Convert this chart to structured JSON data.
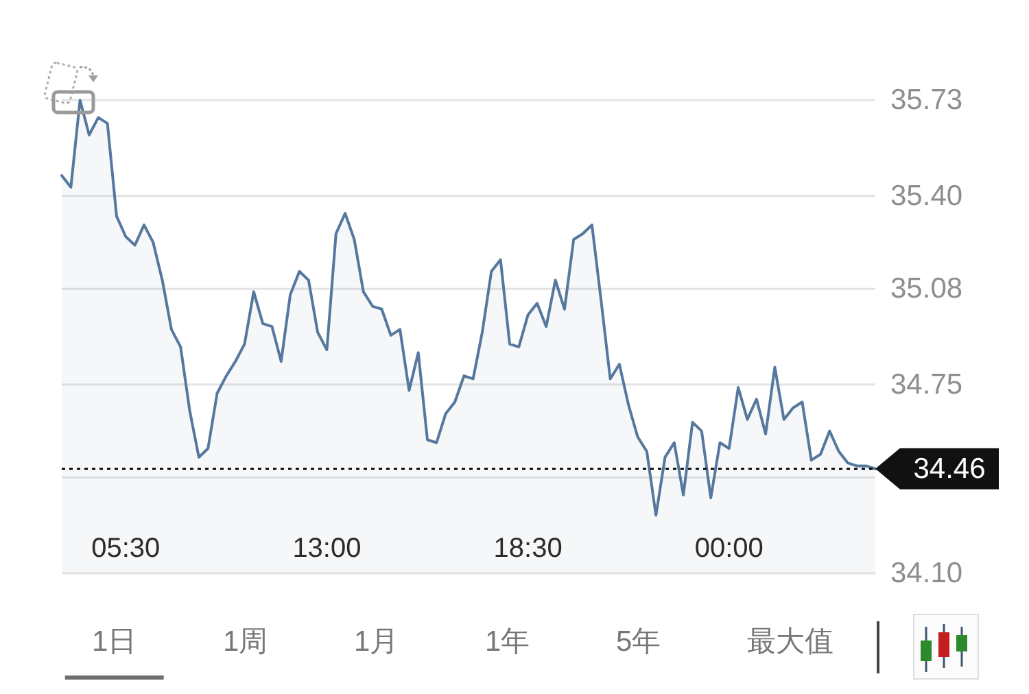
{
  "chart_data": {
    "type": "area",
    "color": "#56789e",
    "categories": [
      null,
      null,
      null,
      null,
      null,
      null,
      null,
      "05:30",
      null,
      null,
      null,
      null,
      null,
      null,
      null,
      null,
      null,
      null,
      null,
      null,
      null,
      null,
      null,
      null,
      null,
      null,
      null,
      null,
      null,
      "13:00",
      null,
      null,
      null,
      null,
      null,
      null,
      null,
      null,
      null,
      null,
      null,
      null,
      null,
      null,
      null,
      null,
      null,
      null,
      null,
      null,
      null,
      "18:30",
      null,
      null,
      null,
      null,
      null,
      null,
      null,
      null,
      null,
      null,
      null,
      null,
      null,
      null,
      null,
      null,
      null,
      null,
      null,
      null,
      null,
      "00:00",
      null,
      null,
      null,
      null,
      null,
      null,
      null,
      null,
      null,
      null,
      null,
      null,
      null,
      null,
      null,
      null
    ],
    "values": [
      35.47,
      35.43,
      35.73,
      35.61,
      35.67,
      35.65,
      35.33,
      35.26,
      35.23,
      35.3,
      35.24,
      35.11,
      34.94,
      34.88,
      34.66,
      34.5,
      34.53,
      34.72,
      34.78,
      34.83,
      34.89,
      35.07,
      34.96,
      34.95,
      34.83,
      35.06,
      35.14,
      35.11,
      34.93,
      34.87,
      35.27,
      35.34,
      35.25,
      35.07,
      35.02,
      35.01,
      34.92,
      34.94,
      34.73,
      34.86,
      34.56,
      34.55,
      34.65,
      34.69,
      34.78,
      34.77,
      34.93,
      35.14,
      35.18,
      34.89,
      34.88,
      34.99,
      35.03,
      34.95,
      35.11,
      35.01,
      35.25,
      35.27,
      35.3,
      35.04,
      34.77,
      34.82,
      34.68,
      34.57,
      34.52,
      34.3,
      34.5,
      34.55,
      34.37,
      34.62,
      34.59,
      34.36,
      34.55,
      34.53,
      34.74,
      34.63,
      34.7,
      34.58,
      34.81,
      34.63,
      34.67,
      34.69,
      34.49,
      34.51,
      34.59,
      34.52,
      34.48,
      34.47,
      34.47,
      34.46
    ],
    "ylim": [
      34.1,
      35.73
    ],
    "yticks": [
      {
        "value": 34.1,
        "label": "34.10"
      },
      {
        "value": 34.43,
        "label": null
      },
      34.75,
      35.08,
      {
        "value": 35.4,
        "label": "35.40"
      },
      35.73
    ],
    "grid": "y",
    "ref_lines": [
      {
        "axis": "y",
        "value": 34.46,
        "label": "34.46",
        "color": "#111111",
        "line_style": "dotted"
      }
    ],
    "annotations": [
      "1日",
      "1周",
      "1月",
      "1年",
      "5年",
      "最大值"
    ]
  }
}
